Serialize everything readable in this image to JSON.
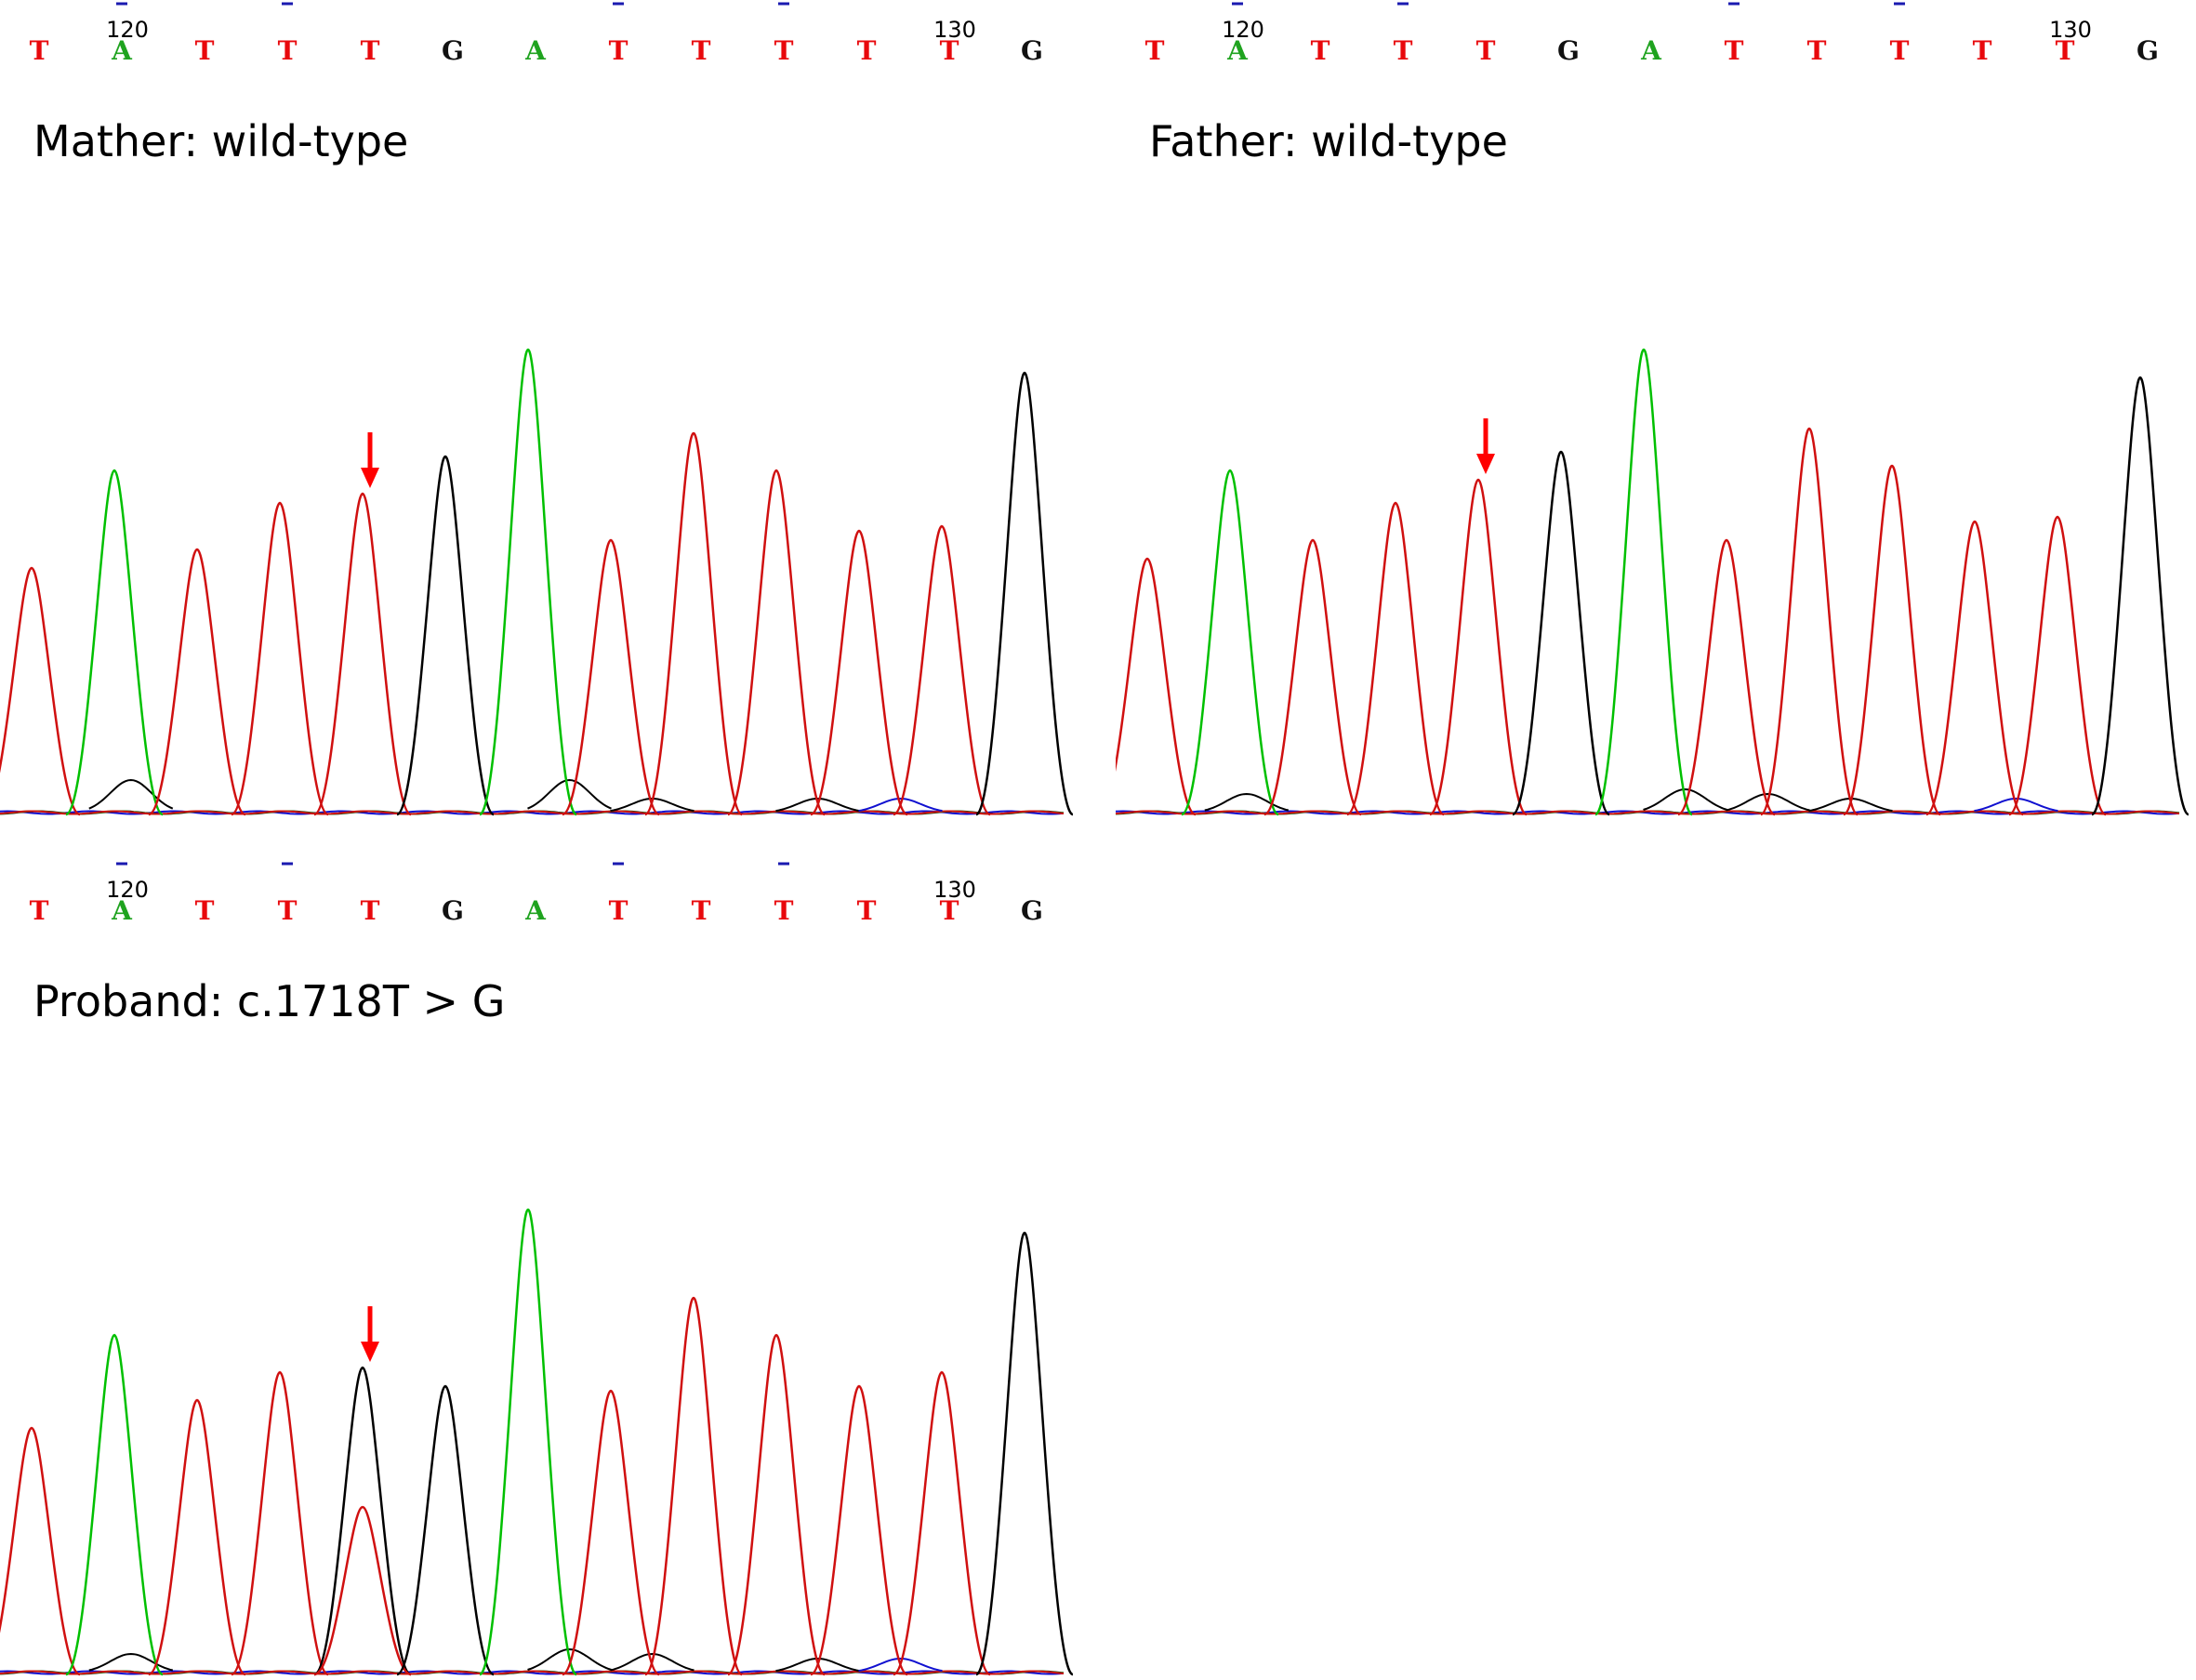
{
  "base_colors": {
    "T": "#e8080c",
    "A": "#1fa31f",
    "G": "#111111",
    "C": "#1818c8"
  },
  "trace_colors": {
    "T": "#d01010",
    "A": "#00c000",
    "G": "#000000",
    "C": "#1010d0"
  },
  "arrow_color": "#ff0000",
  "chart_data": [
    {
      "type": "chromatogram",
      "title": "Mather: wild-type",
      "sequence": [
        "T",
        "A",
        "T",
        "T",
        "T",
        "G",
        "A",
        "T",
        "T",
        "T",
        "T",
        "T",
        "G"
      ],
      "position_labels": [
        {
          "index": 1,
          "label": "120"
        },
        {
          "index": 11,
          "label": "130"
        }
      ],
      "marker_indices": [
        1,
        3,
        7,
        9
      ],
      "arrow_index": 4,
      "peaks": [
        {
          "base": "T",
          "height": 0.53
        },
        {
          "base": "A",
          "height": 0.74
        },
        {
          "base": "T",
          "height": 0.57
        },
        {
          "base": "T",
          "height": 0.67
        },
        {
          "base": "T",
          "height": 0.69
        },
        {
          "base": "G",
          "height": 0.77
        },
        {
          "base": "A",
          "height": 1.0
        },
        {
          "base": "T",
          "height": 0.59
        },
        {
          "base": "T",
          "height": 0.82
        },
        {
          "base": "T",
          "height": 0.74
        },
        {
          "base": "T",
          "height": 0.61
        },
        {
          "base": "T",
          "height": 0.62
        },
        {
          "base": "G",
          "height": 0.95
        }
      ],
      "minor_peaks": [
        {
          "base": "G",
          "index": 1.2,
          "height": 0.07
        },
        {
          "base": "G",
          "index": 6.5,
          "height": 0.07
        },
        {
          "base": "G",
          "index": 7.5,
          "height": 0.03
        },
        {
          "base": "G",
          "index": 9.5,
          "height": 0.03
        },
        {
          "base": "C",
          "index": 10.5,
          "height": 0.03
        }
      ]
    },
    {
      "type": "chromatogram",
      "title": "Father: wild-type",
      "sequence": [
        "T",
        "A",
        "T",
        "T",
        "T",
        "G",
        "A",
        "T",
        "T",
        "T",
        "T",
        "T",
        "G"
      ],
      "position_labels": [
        {
          "index": 1,
          "label": "120"
        },
        {
          "index": 11,
          "label": "130"
        }
      ],
      "marker_indices": [
        1,
        3,
        7,
        9
      ],
      "arrow_index": 4,
      "peaks": [
        {
          "base": "T",
          "height": 0.55
        },
        {
          "base": "A",
          "height": 0.74
        },
        {
          "base": "T",
          "height": 0.59
        },
        {
          "base": "T",
          "height": 0.67
        },
        {
          "base": "T",
          "height": 0.72
        },
        {
          "base": "G",
          "height": 0.78
        },
        {
          "base": "A",
          "height": 1.0
        },
        {
          "base": "T",
          "height": 0.59
        },
        {
          "base": "T",
          "height": 0.83
        },
        {
          "base": "T",
          "height": 0.75
        },
        {
          "base": "T",
          "height": 0.63
        },
        {
          "base": "T",
          "height": 0.64
        },
        {
          "base": "G",
          "height": 0.94
        }
      ],
      "minor_peaks": [
        {
          "base": "G",
          "index": 1.2,
          "height": 0.04
        },
        {
          "base": "G",
          "index": 6.5,
          "height": 0.05
        },
        {
          "base": "G",
          "index": 7.5,
          "height": 0.04
        },
        {
          "base": "G",
          "index": 8.5,
          "height": 0.03
        },
        {
          "base": "C",
          "index": 10.5,
          "height": 0.03
        }
      ]
    },
    {
      "type": "chromatogram",
      "title": "Proband: c.1718T > G",
      "sequence": [
        "T",
        "A",
        "T",
        "T",
        "T",
        "G",
        "A",
        "T",
        "T",
        "T",
        "T",
        "T",
        "G"
      ],
      "position_labels": [
        {
          "index": 1,
          "label": "120"
        },
        {
          "index": 11,
          "label": "130"
        }
      ],
      "marker_indices": [
        1,
        3,
        7,
        9
      ],
      "arrow_index": 4,
      "peaks": [
        {
          "base": "T",
          "height": 0.53
        },
        {
          "base": "A",
          "height": 0.73
        },
        {
          "base": "T",
          "height": 0.59
        },
        {
          "base": "T",
          "height": 0.65
        },
        {
          "base": "G",
          "height": 0.66
        },
        {
          "base": "T",
          "height": 0.36
        },
        {
          "base": "G",
          "height": 0.62
        },
        {
          "base": "A",
          "height": 1.0
        },
        {
          "base": "T",
          "height": 0.61
        },
        {
          "base": "T",
          "height": 0.81
        },
        {
          "base": "T",
          "height": 0.73
        },
        {
          "base": "T",
          "height": 0.62
        },
        {
          "base": "T",
          "height": 0.65
        },
        {
          "base": "G",
          "height": 0.95
        }
      ],
      "minor_peaks": [
        {
          "base": "G",
          "index": 1.2,
          "height": 0.04
        },
        {
          "base": "G",
          "index": 6.5,
          "height": 0.05
        },
        {
          "base": "G",
          "index": 7.5,
          "height": 0.04
        },
        {
          "base": "G",
          "index": 9.5,
          "height": 0.03
        },
        {
          "base": "C",
          "index": 10.5,
          "height": 0.03
        }
      ]
    }
  ]
}
